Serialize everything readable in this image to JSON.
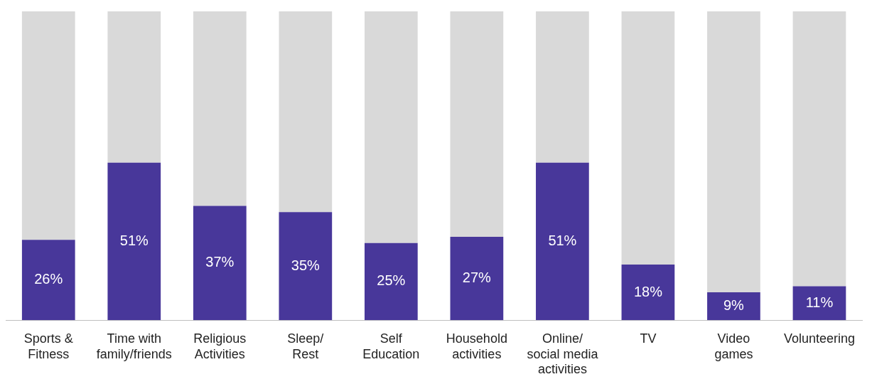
{
  "chart_data": {
    "type": "bar",
    "stacked": true,
    "categories": [
      "Sports &\nFitness",
      "Time with\nfamily/friends",
      "Religious\nActivities",
      "Sleep/\nRest",
      "Self\nEducation",
      "Household\nactivities",
      "Online/\nsocial media\nactivities",
      "TV",
      "Video\ngames",
      "Volunteering"
    ],
    "series": [
      {
        "color": "#48379a",
        "values": [
          26,
          51,
          37,
          35,
          25,
          27,
          51,
          18,
          9,
          11
        ],
        "value_labels": [
          "26%",
          "51%",
          "37%",
          "35%",
          "25%",
          "27%",
          "51%",
          "18%",
          "9%",
          "11%"
        ]
      },
      {
        "color": "#d9d9d9",
        "values": [
          74,
          49,
          63,
          65,
          75,
          73,
          49,
          82,
          91,
          89
        ]
      }
    ],
    "ylim": [
      0,
      100
    ],
    "grid": false,
    "legend": false
  }
}
